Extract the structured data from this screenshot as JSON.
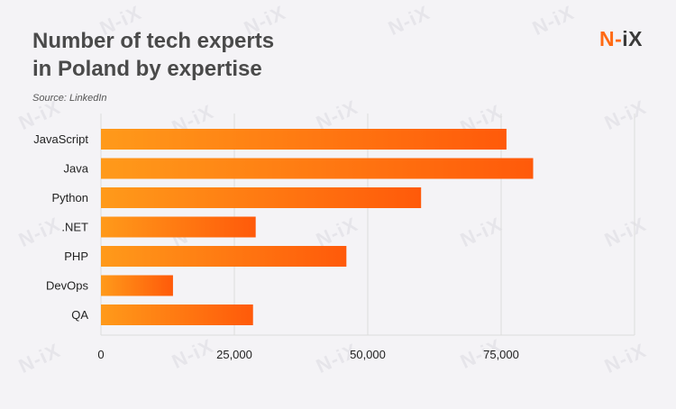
{
  "header": {
    "title_line1": "Number of tech experts",
    "title_line2": "in Poland by expertise",
    "source": "Source: LinkedIn",
    "logo_main": "N",
    "logo_dash": "-",
    "logo_tail": "iX"
  },
  "watermark_text": "N-iX",
  "colors": {
    "bar_start": "#ff9a1a",
    "bar_end": "#ff5a0a",
    "grid": "#dcdcdc",
    "title": "#4a4a4a",
    "accent": "#ff6a13"
  },
  "chart_data": {
    "type": "bar",
    "orientation": "horizontal",
    "title": "Number of tech experts in Poland by expertise",
    "xlabel": "",
    "ylabel": "",
    "categories": [
      "JavaScript",
      "Java",
      "Python",
      ".NET",
      "PHP",
      "DevOps",
      "QA"
    ],
    "values": [
      76000,
      81000,
      60000,
      29000,
      46000,
      13500,
      28500
    ],
    "xlim": [
      0,
      100000
    ],
    "xticks": [
      0,
      25000,
      50000,
      75000
    ],
    "xtick_labels": [
      "0",
      "25,000",
      "50,000",
      "75,000"
    ],
    "grid": true
  }
}
